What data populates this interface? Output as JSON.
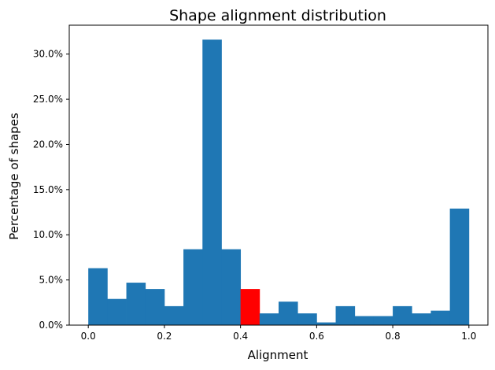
{
  "chart_data": {
    "type": "bar",
    "title": "Shape alignment distribution",
    "xlabel": "Alignment",
    "ylabel": "Percentage of shapes",
    "xlim": [
      -0.05,
      1.05
    ],
    "ylim": [
      0,
      33.2
    ],
    "grid": false,
    "bin_edges": [
      0.0,
      0.05,
      0.1,
      0.15,
      0.2,
      0.25,
      0.3,
      0.35,
      0.4,
      0.45,
      0.5,
      0.55,
      0.6,
      0.65,
      0.7,
      0.75,
      0.8,
      0.85,
      0.9,
      0.95,
      1.0
    ],
    "values": [
      6.3,
      2.9,
      4.7,
      4.0,
      2.1,
      8.4,
      31.6,
      8.4,
      4.0,
      1.3,
      2.6,
      1.3,
      0.3,
      2.1,
      1.0,
      1.0,
      2.1,
      1.3,
      1.6,
      12.9
    ],
    "highlight_index": 8,
    "colors": {
      "bar": "#1f77b4",
      "highlight": "#ff0000",
      "axis": "#000000"
    },
    "x_ticks": [
      {
        "value": 0.0,
        "label": "0.0"
      },
      {
        "value": 0.2,
        "label": "0.2"
      },
      {
        "value": 0.4,
        "label": "0.4"
      },
      {
        "value": 0.6,
        "label": "0.6"
      },
      {
        "value": 0.8,
        "label": "0.8"
      },
      {
        "value": 1.0,
        "label": "1.0"
      }
    ],
    "y_ticks": [
      {
        "value": 0,
        "label": "0.0%"
      },
      {
        "value": 5,
        "label": "5.0%"
      },
      {
        "value": 10,
        "label": "10.0%"
      },
      {
        "value": 15,
        "label": "15.0%"
      },
      {
        "value": 20,
        "label": "20.0%"
      },
      {
        "value": 25,
        "label": "25.0%"
      },
      {
        "value": 30,
        "label": "30.0%"
      }
    ]
  }
}
